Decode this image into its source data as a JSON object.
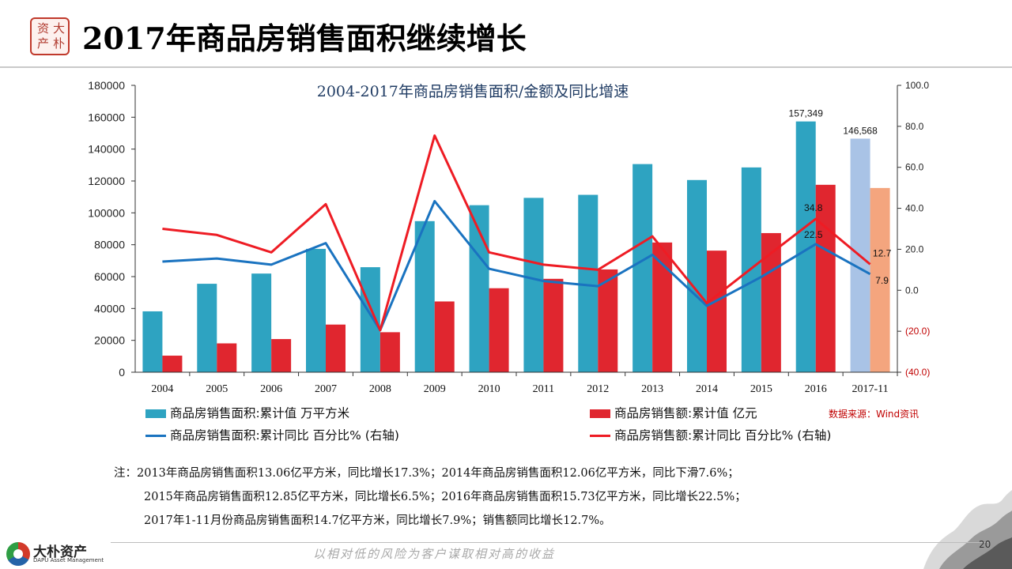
{
  "slide": {
    "title": "2017年商品房销售面积继续增长",
    "seal_chars": [
      "大",
      "朴",
      "资",
      "产"
    ]
  },
  "chart_data": {
    "type": "bar",
    "title": "2004-2017年商品房销售面积/金额及同比增速",
    "categories": [
      "2004",
      "2005",
      "2006",
      "2007",
      "2008",
      "2009",
      "2010",
      "2011",
      "2012",
      "2013",
      "2014",
      "2015",
      "2016",
      "2017-11"
    ],
    "series": [
      {
        "name": "商品房销售面积:累计值 万平方米",
        "kind": "bar",
        "axis": "left",
        "color": "#2ea3c1",
        "highlight_last_color": "#a9c3e6",
        "values": [
          38200,
          55500,
          61900,
          77400,
          65900,
          94800,
          104800,
          109400,
          111300,
          130600,
          120600,
          128500,
          157349,
          146568
        ],
        "labels": {
          "12": "157,349",
          "13": "146,568"
        }
      },
      {
        "name": "商品房销售额:累计值 亿元",
        "kind": "bar",
        "axis": "left",
        "color": "#e0262f",
        "highlight_last_color": "#f4a57e",
        "values": [
          10400,
          18100,
          20800,
          29900,
          25100,
          44400,
          52700,
          58600,
          64500,
          81400,
          76300,
          87300,
          117600,
          115600
        ]
      },
      {
        "name": "商品房销售面积:累计同比 百分比% (右轴)",
        "kind": "line",
        "axis": "right",
        "color": "#1a73c0",
        "values": [
          14.0,
          15.5,
          12.5,
          23.0,
          -19.5,
          43.5,
          10.5,
          4.5,
          2.0,
          17.3,
          -7.6,
          6.5,
          22.5,
          7.9
        ],
        "labels": {
          "12": "22.5",
          "13": "7.9"
        }
      },
      {
        "name": "商品房销售额:累计同比 百分比% (右轴)",
        "kind": "line",
        "axis": "right",
        "color": "#ee1c24",
        "values": [
          30.0,
          27.0,
          18.5,
          42.0,
          -19.5,
          75.5,
          18.5,
          12.5,
          10.0,
          26.3,
          -6.3,
          14.4,
          34.8,
          12.7
        ],
        "labels": {
          "12": "34.8",
          "13": "12.7"
        }
      }
    ],
    "y_left": {
      "min": 0,
      "max": 180000,
      "ticks": [
        "0",
        "20000",
        "40000",
        "60000",
        "80000",
        "100000",
        "120000",
        "140000",
        "160000",
        "180000"
      ]
    },
    "y_right": {
      "min": -40,
      "max": 100,
      "ticks": [
        "(40.0)",
        "(20.0)",
        "0.0",
        "20.0",
        "40.0",
        "60.0",
        "80.0",
        "100.0"
      ],
      "negative_color": "#c00000"
    },
    "grid": false,
    "legend_placement": "bottom"
  },
  "source": "数据来源：Wind资讯",
  "notes": [
    "注：2013年商品房销售面积13.06亿平方米，同比增长17.3%；2014年商品房销售面积12.06亿平方米，同比下滑7.6%；",
    "2015年商品房销售面积12.85亿平方米，同比增长6.5%；2016年商品房销售面积15.73亿平方米，同比增长22.5%；",
    "2017年1-11月份商品房销售面积14.7亿平方米，同比增长7.9%；销售额同比增长12.7%。"
  ],
  "footer": {
    "brand_name": "大朴资产",
    "brand_en": "DAPU Asset Management",
    "slogan": "以相对低的风险为客户谋取相对高的收益",
    "page_number": "20"
  }
}
